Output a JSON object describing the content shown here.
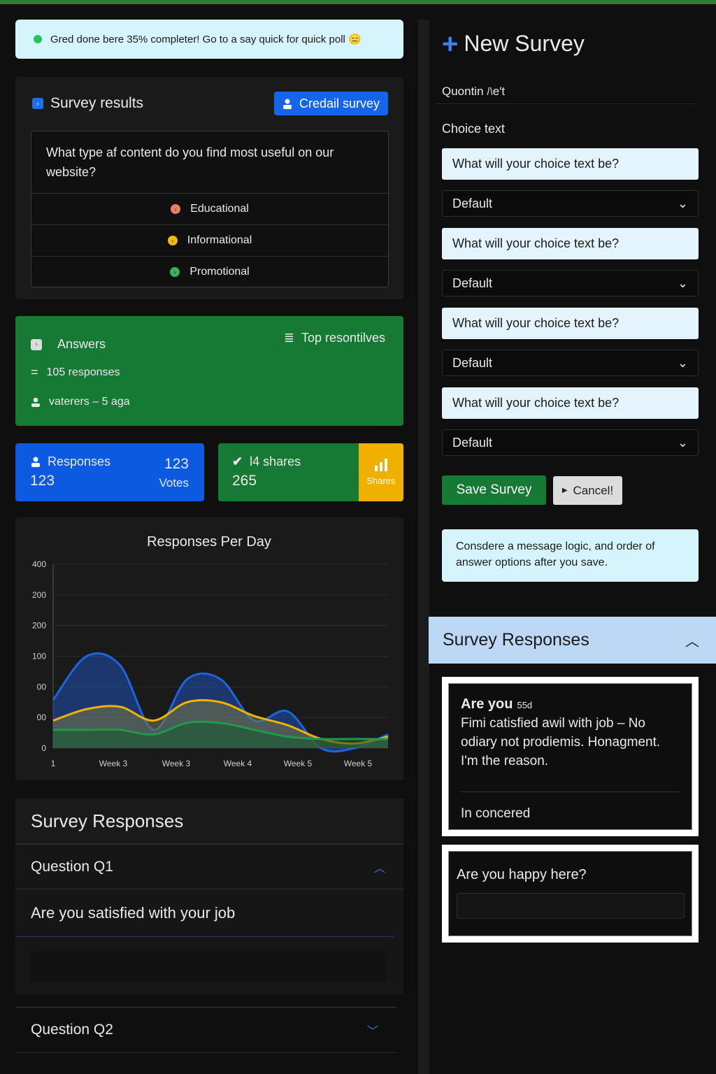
{
  "alert": {
    "text": "Gred done bere 35% completer! Go to a say quick for quick poll 😑"
  },
  "survey_results": {
    "title": "Survey results",
    "button_label": "Credail survey",
    "question": "What type af content do you find most useful on our website?",
    "options": [
      {
        "label": "Educational",
        "color": "#ef7d6b"
      },
      {
        "label": "Informational",
        "color": "#f5b80f"
      },
      {
        "label": "Promotional",
        "color": "#35b35c"
      }
    ]
  },
  "answers": {
    "title": "Answers",
    "responses": "105 responses",
    "voters": "vaterers – 5 aga",
    "top_label": "Top resontilves"
  },
  "stats": {
    "responses_label": "Responses",
    "responses_value": "123",
    "votes_value": "123",
    "votes_label": "Votes",
    "shares_label": "l4 shares",
    "shares_value": "265",
    "shares_badge": "Shares"
  },
  "chart_data": {
    "type": "area",
    "title": "Responses Per Day",
    "y_tick_labels": [
      "400",
      "200",
      "200",
      "100",
      "00",
      "00",
      "0"
    ],
    "x_tick_labels": [
      "1",
      "Week 3",
      "Week 3",
      "Week 4",
      "Week 5",
      "Week 5"
    ],
    "x": [
      0,
      0.5,
      1,
      1.5,
      2,
      2.5,
      3,
      3.5,
      4,
      4.5,
      5
    ],
    "ylim": [
      0,
      400
    ],
    "series": [
      {
        "color": "#1e63e0",
        "values": [
          105,
          200,
          180,
          40,
          150,
          150,
          60,
          80,
          0,
          0,
          30
        ]
      },
      {
        "color": "#f0b400",
        "values": [
          60,
          85,
          90,
          60,
          100,
          100,
          70,
          50,
          20,
          10,
          25
        ]
      },
      {
        "color": "#1f9a4a",
        "values": [
          40,
          40,
          40,
          30,
          55,
          55,
          40,
          25,
          20,
          20,
          20
        ]
      }
    ]
  },
  "survey_responses": {
    "title": "Survey Responses",
    "q1_label": "Question Q1",
    "q1_text": "Are you satisfied with your job",
    "q2_label": "Question Q2"
  },
  "new_survey": {
    "title": "New Survey",
    "question_name": "Quontin ﾊe′t",
    "choice_label": "Choice text",
    "choices": [
      {
        "placeholder": "What will your choice text be?",
        "select": "Default"
      },
      {
        "placeholder": "What will your choice text be?",
        "select": "Default"
      },
      {
        "placeholder": "What will your choice text be?",
        "select": "Default"
      },
      {
        "placeholder": "What will your choice text be?",
        "select": "Default"
      }
    ],
    "save_label": "Save Survey",
    "cancel_label": "Cancel!",
    "note": "Consdere a message logic, and order of answer options after you save."
  },
  "right_responses": {
    "title": "Survey Responses",
    "card1_title": "Are you",
    "card1_meta": "55d",
    "card1_body": "Fimi catisfied awil with job – No odiary not prodiemis. Honagment. I'm the reason.",
    "card1_footer": "In concered",
    "card2_title": "Are you happy here?"
  }
}
